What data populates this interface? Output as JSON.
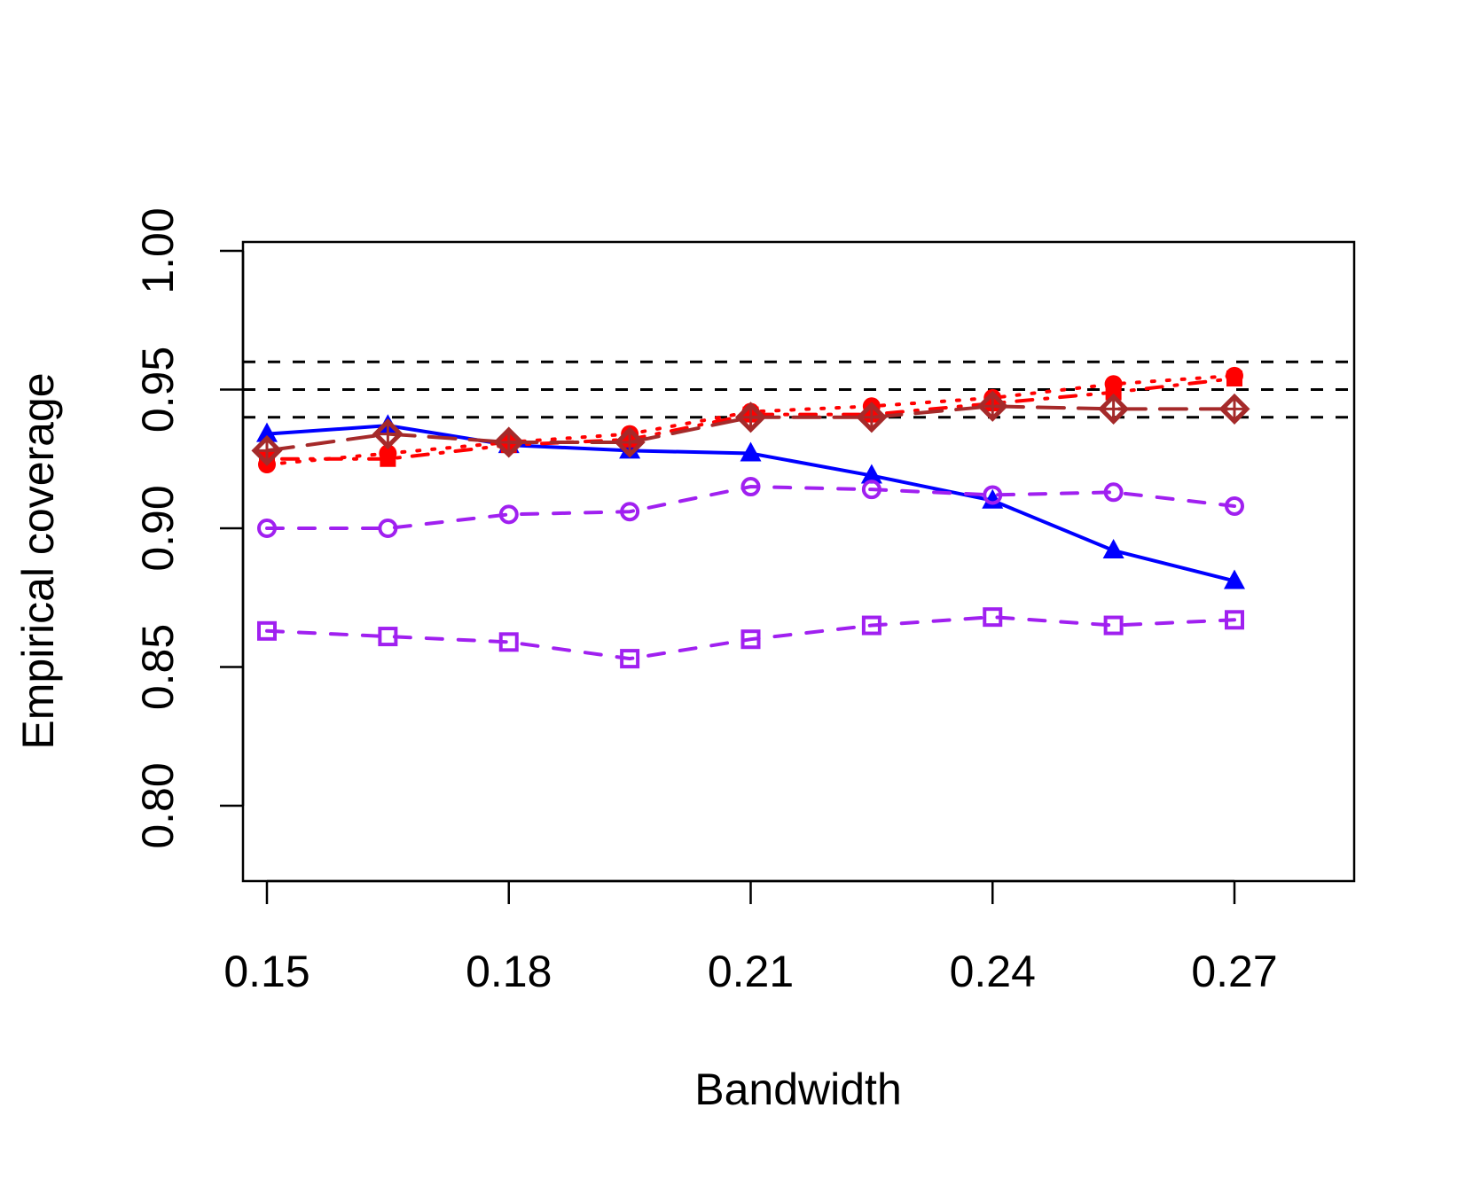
{
  "chart_data": {
    "type": "line",
    "title": "",
    "xlabel": "Bandwidth",
    "ylabel": "Empirical coverage",
    "xlim": [
      0.144,
      0.2755
    ],
    "ylim": [
      0.792,
      1.008
    ],
    "xticks": [
      "0.15",
      "0.18",
      "0.21",
      "0.24",
      "0.27"
    ],
    "yticks": [
      "0.80",
      "0.85",
      "0.90",
      "0.95",
      "1.00"
    ],
    "grid": false,
    "reference_lines": [
      0.94,
      0.95,
      0.96
    ],
    "x": [
      0.15,
      0.165,
      0.18,
      0.195,
      0.21,
      0.225,
      0.24,
      0.255,
      0.27
    ],
    "series": [
      {
        "color": "#0000ff",
        "marker": "filled-triangle",
        "line": "solid",
        "values": [
          0.934,
          0.937,
          0.93,
          0.928,
          0.927,
          0.919,
          0.91,
          0.892,
          0.881
        ]
      },
      {
        "color": "#a020f0",
        "marker": "open-circle",
        "line": "dashed",
        "values": [
          0.9,
          0.9,
          0.905,
          0.906,
          0.915,
          0.914,
          0.912,
          0.913,
          0.908
        ]
      },
      {
        "color": "#a020f0",
        "marker": "open-square",
        "line": "dashed",
        "values": [
          0.863,
          0.861,
          0.859,
          0.853,
          0.86,
          0.865,
          0.868,
          0.865,
          0.867
        ]
      },
      {
        "color": "#ff0000",
        "marker": "filled-square",
        "line": "dotdash",
        "values": [
          0.925,
          0.925,
          0.93,
          0.932,
          0.941,
          0.941,
          0.945,
          0.949,
          0.954
        ]
      },
      {
        "color": "#ff0000",
        "marker": "filled-circle",
        "line": "dotted",
        "values": [
          0.923,
          0.927,
          0.931,
          0.934,
          0.942,
          0.944,
          0.947,
          0.952,
          0.955
        ]
      },
      {
        "color": "#a52a2a",
        "marker": "diamond-plus",
        "line": "longdash",
        "values": [
          0.928,
          0.934,
          0.931,
          0.931,
          0.94,
          0.94,
          0.944,
          0.943,
          0.943
        ]
      }
    ]
  }
}
